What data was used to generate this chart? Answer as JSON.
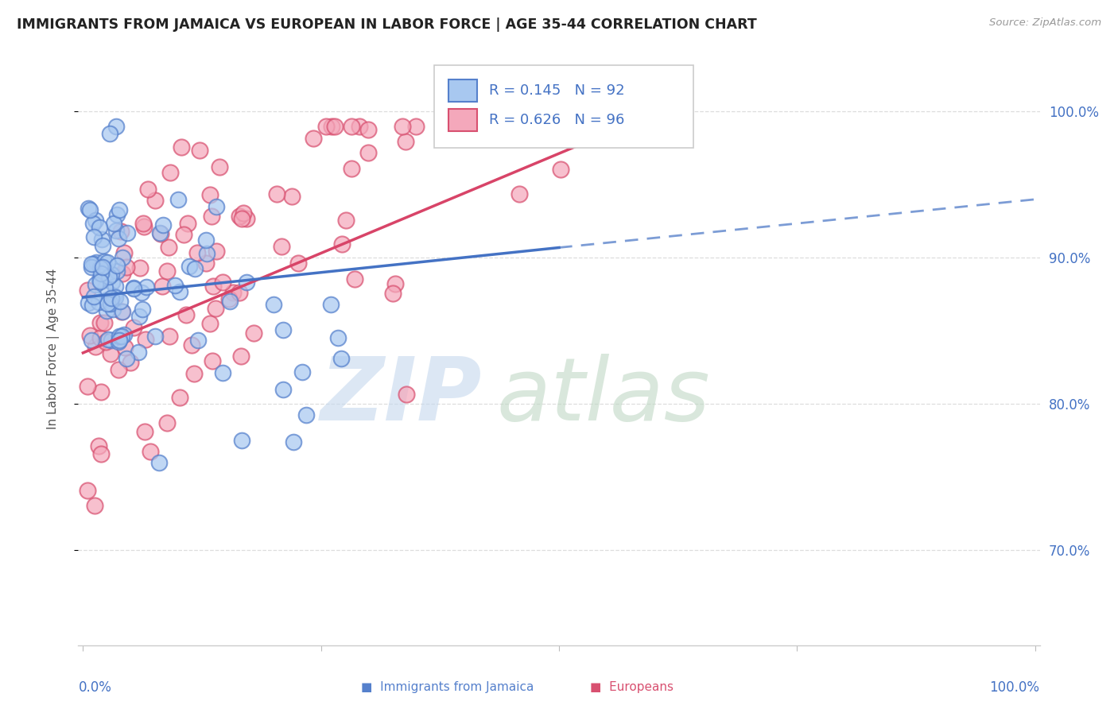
{
  "title": "IMMIGRANTS FROM JAMAICA VS EUROPEAN IN LABOR FORCE | AGE 35-44 CORRELATION CHART",
  "source": "Source: ZipAtlas.com",
  "ylabel": "In Labor Force | Age 35-44",
  "legend_r_jamaica": "R = 0.145",
  "legend_n_jamaica": "N = 92",
  "legend_r_european": "R = 0.626",
  "legend_n_european": "N = 96",
  "color_jamaica_fill": "#A8C8F0",
  "color_jamaica_edge": "#5580CC",
  "color_european_fill": "#F4A8BB",
  "color_european_edge": "#D85070",
  "color_jamaica_line": "#4472C4",
  "color_european_line": "#D84468",
  "yticks": [
    0.7,
    0.8,
    0.9,
    1.0
  ],
  "ytick_labels": [
    "70.0%",
    "80.0%",
    "90.0%",
    "100.0%"
  ],
  "xlim": [
    0.0,
    1.0
  ],
  "ylim": [
    0.635,
    1.04
  ],
  "jam_seed": 42,
  "eur_seed": 77,
  "n_jam": 92,
  "n_eur": 96
}
